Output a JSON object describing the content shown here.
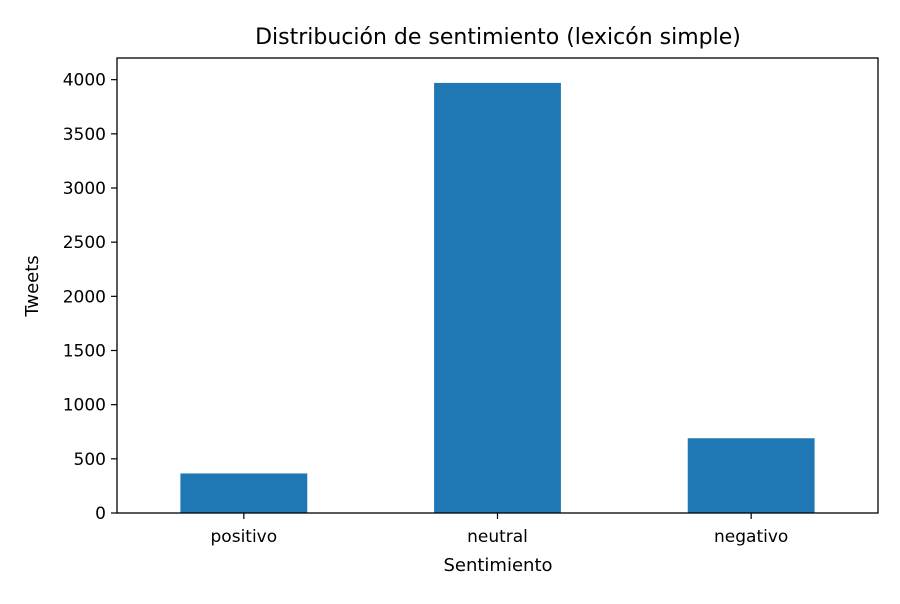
{
  "chart_data": {
    "type": "bar",
    "title": "Distribución de sentimiento (lexicón simple)",
    "xlabel": "Sentimiento",
    "ylabel": "Tweets",
    "categories": [
      "positivo",
      "neutral",
      "negativo"
    ],
    "values": [
      365,
      3970,
      690
    ],
    "ylim": [
      0,
      4200
    ],
    "yticks": [
      0,
      500,
      1000,
      1500,
      2000,
      2500,
      3000,
      3500,
      4000
    ],
    "bar_color": "#1f77b4",
    "grid": false,
    "legend": "none"
  }
}
